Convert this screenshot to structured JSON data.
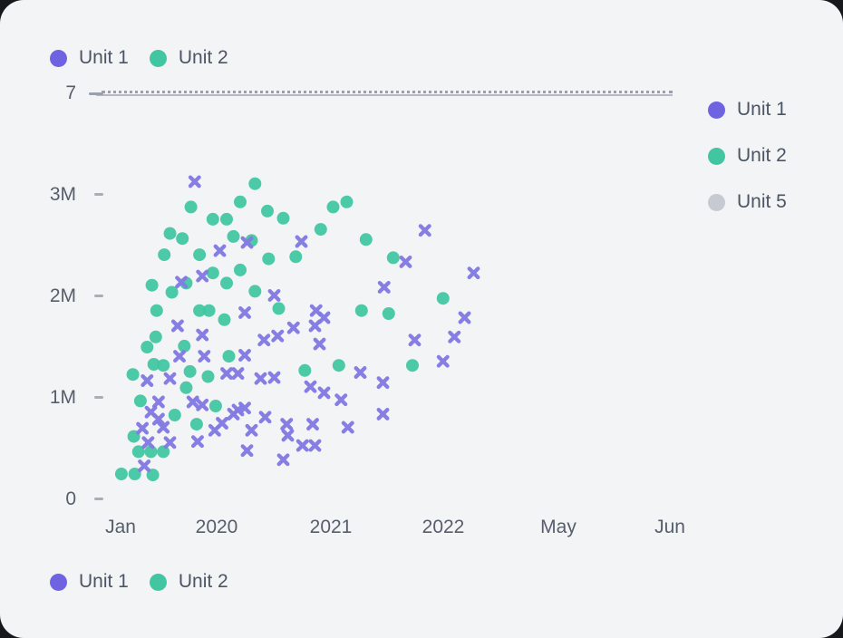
{
  "chart": {
    "background": "#f3f4f6",
    "outer_background": "#17181b"
  },
  "colors": {
    "unit1": "#6f63e2",
    "unit1_marker": "#837ae3",
    "unit2": "#42c6a2",
    "unit5": "#c7c9d3",
    "legend_text": "#4b5563",
    "axis_text": "#565e6c",
    "tick": "#a9adb7",
    "threshold_line": "#9ba0ab"
  },
  "legend_top": {
    "items": [
      {
        "label": "Unit 1",
        "color": "#6f63e2"
      },
      {
        "label": "Unit 2",
        "color": "#42c6a2"
      }
    ]
  },
  "legend_right": {
    "items": [
      {
        "label": "Unit 1",
        "color": "#6f63e2"
      },
      {
        "label": "Unit 2",
        "color": "#42c6a2"
      },
      {
        "label": "Unit 5",
        "color": "#c7c9d3"
      }
    ]
  },
  "legend_bottom": {
    "items": [
      {
        "label": "Unit 1",
        "color": "#6f63e2"
      },
      {
        "label": "Unit 2",
        "color": "#42c6a2"
      }
    ]
  },
  "chart_data": {
    "type": "scatter",
    "x_labels": [
      "Jan",
      "2020",
      "2021",
      "2022",
      "May",
      "Jun"
    ],
    "y_tick_labels": [
      "0",
      "1M",
      "2M",
      "3M"
    ],
    "y_secondary_label": "7",
    "ylim_millions": [
      0,
      3.5
    ],
    "x_axis_note": "x values are axis units: 0=Jan, 1=2020, 2=2021, 3=2022, 4=May, 5=Jun",
    "threshold": {
      "series": "Unit 5",
      "value": 7,
      "style": "dashed-horizontal-line"
    },
    "series": [
      {
        "name": "Unit 1",
        "marker": "x",
        "color": "#837ae3",
        "points": [
          [
            0.76,
            3.13
          ],
          [
            1.02,
            2.45
          ],
          [
            1.26,
            2.53
          ],
          [
            2.83,
            2.65
          ],
          [
            3.26,
            2.23
          ],
          [
            0.84,
            2.2
          ],
          [
            0.62,
            2.14
          ],
          [
            1.74,
            2.54
          ],
          [
            2.47,
            2.09
          ],
          [
            1.5,
            2.01
          ],
          [
            2.66,
            2.34
          ],
          [
            1.24,
            1.84
          ],
          [
            0.58,
            1.71
          ],
          [
            0.84,
            1.62
          ],
          [
            1.41,
            1.57
          ],
          [
            1.53,
            1.61
          ],
          [
            1.87,
            1.86
          ],
          [
            1.94,
            1.79
          ],
          [
            1.86,
            1.71
          ],
          [
            1.67,
            1.69
          ],
          [
            3.18,
            1.79
          ],
          [
            3.09,
            1.6
          ],
          [
            2.74,
            1.57
          ],
          [
            1.9,
            1.53
          ],
          [
            0.6,
            1.41
          ],
          [
            0.86,
            1.41
          ],
          [
            1.24,
            1.42
          ],
          [
            1.08,
            1.24
          ],
          [
            1.18,
            1.24
          ],
          [
            1.38,
            1.19
          ],
          [
            1.5,
            1.2
          ],
          [
            0.26,
            1.17
          ],
          [
            0.5,
            1.19
          ],
          [
            2.99,
            1.36
          ],
          [
            2.26,
            1.25
          ],
          [
            2.46,
            1.15
          ],
          [
            1.82,
            1.11
          ],
          [
            1.94,
            1.05
          ],
          [
            2.09,
            0.98
          ],
          [
            0.38,
            0.96
          ],
          [
            0.3,
            0.86
          ],
          [
            0.74,
            0.96
          ],
          [
            0.84,
            0.93
          ],
          [
            0.38,
            0.79
          ],
          [
            0.43,
            0.71
          ],
          [
            0.21,
            0.7
          ],
          [
            0.97,
            0.68
          ],
          [
            1.04,
            0.75
          ],
          [
            1.14,
            0.84
          ],
          [
            1.18,
            0.88
          ],
          [
            1.24,
            0.9
          ],
          [
            1.3,
            0.68
          ],
          [
            1.42,
            0.81
          ],
          [
            2.46,
            0.84
          ],
          [
            1.84,
            0.74
          ],
          [
            2.15,
            0.71
          ],
          [
            0.79,
            0.57
          ],
          [
            0.27,
            0.56
          ],
          [
            0.5,
            0.56
          ],
          [
            1.61,
            0.74
          ],
          [
            1.62,
            0.63
          ],
          [
            1.75,
            0.53
          ],
          [
            1.86,
            0.53
          ],
          [
            1.26,
            0.48
          ],
          [
            1.58,
            0.39
          ],
          [
            0.23,
            0.33
          ]
        ]
      },
      {
        "name": "Unit 2",
        "marker": "circle",
        "color": "#42c6a2",
        "points": [
          [
            1.33,
            3.11
          ],
          [
            0.72,
            2.88
          ],
          [
            1.2,
            2.93
          ],
          [
            1.44,
            2.84
          ],
          [
            1.58,
            2.77
          ],
          [
            0.95,
            2.76
          ],
          [
            1.08,
            2.76
          ],
          [
            2.02,
            2.88
          ],
          [
            2.14,
            2.93
          ],
          [
            0.5,
            2.62
          ],
          [
            0.63,
            2.57
          ],
          [
            1.14,
            2.59
          ],
          [
            1.3,
            2.55
          ],
          [
            1.91,
            2.66
          ],
          [
            2.31,
            2.56
          ],
          [
            0.44,
            2.41
          ],
          [
            0.81,
            2.41
          ],
          [
            1.45,
            2.37
          ],
          [
            2.55,
            2.38
          ],
          [
            1.69,
            2.39
          ],
          [
            0.95,
            2.23
          ],
          [
            1.2,
            2.26
          ],
          [
            0.67,
            2.13
          ],
          [
            1.08,
            2.13
          ],
          [
            0.31,
            2.11
          ],
          [
            0.52,
            2.04
          ],
          [
            1.33,
            2.05
          ],
          [
            2.99,
            1.98
          ],
          [
            2.27,
            1.86
          ],
          [
            2.51,
            1.83
          ],
          [
            1.54,
            1.88
          ],
          [
            0.36,
            1.86
          ],
          [
            0.81,
            1.86
          ],
          [
            0.91,
            1.86
          ],
          [
            1.06,
            1.77
          ],
          [
            0.35,
            1.6
          ],
          [
            0.26,
            1.5
          ],
          [
            0.65,
            1.51
          ],
          [
            1.77,
            1.27
          ],
          [
            2.07,
            1.32
          ],
          [
            2.72,
            1.32
          ],
          [
            0.33,
            1.33
          ],
          [
            0.43,
            1.32
          ],
          [
            0.11,
            1.23
          ],
          [
            0.71,
            1.26
          ],
          [
            0.9,
            1.21
          ],
          [
            1.1,
            1.41
          ],
          [
            0.19,
            0.97
          ],
          [
            0.67,
            1.1
          ],
          [
            0.55,
            0.83
          ],
          [
            0.78,
            0.74
          ],
          [
            0.98,
            0.92
          ],
          [
            0.12,
            0.62
          ],
          [
            0.17,
            0.47
          ],
          [
            0.3,
            0.47
          ],
          [
            0.43,
            0.47
          ],
          [
            -0.01,
            0.25
          ],
          [
            0.13,
            0.25
          ],
          [
            0.32,
            0.24
          ]
        ]
      },
      {
        "name": "Unit 5",
        "marker": "dashed-line",
        "color": "#c7c9d3",
        "points": []
      }
    ]
  }
}
